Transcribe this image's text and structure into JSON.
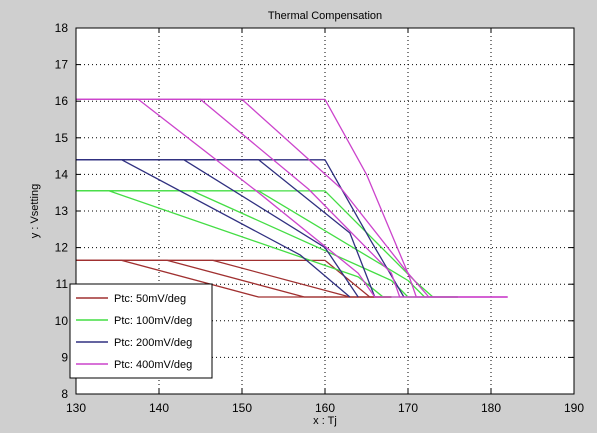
{
  "chart_data": {
    "type": "line",
    "title": "Thermal Compensation",
    "xlabel": "x : Tj",
    "ylabel": "y : Vsetting",
    "xlim": [
      130,
      190
    ],
    "ylim": [
      8,
      18
    ],
    "xticks": [
      "130",
      "140",
      "150",
      "160",
      "170",
      "180",
      "190"
    ],
    "yticks": [
      "8",
      "9",
      "10",
      "11",
      "12",
      "13",
      "14",
      "15",
      "16",
      "17",
      "18"
    ],
    "grid": true,
    "legend_position": "bottom-left",
    "series": [
      {
        "name": "Ptc: 50mV/deg",
        "color": "#a03030",
        "lines": [
          [
            [
              130,
              11.65
            ],
            [
              160,
              11.65
            ],
            [
              165.4,
              10.65
            ],
            [
              168,
              10.65
            ]
          ],
          [
            [
              130,
              11.65
            ],
            [
              135.5,
              11.65
            ],
            [
              152,
              10.65
            ],
            [
              168,
              10.65
            ]
          ],
          [
            [
              130,
              11.65
            ],
            [
              141,
              11.65
            ],
            [
              157.5,
              10.65
            ],
            [
              168,
              10.65
            ]
          ],
          [
            [
              130,
              11.65
            ],
            [
              146.5,
              11.65
            ],
            [
              163,
              10.65
            ],
            [
              168,
              10.65
            ]
          ]
        ]
      },
      {
        "name": "Ptc: 100mV/deg",
        "color": "#44dd44",
        "lines": [
          [
            [
              130,
              13.55
            ],
            [
              160,
              13.55
            ],
            [
              171,
              11.05
            ],
            [
              173,
              10.65
            ],
            [
              176,
              10.65
            ]
          ],
          [
            [
              130,
              13.55
            ],
            [
              134,
              13.55
            ],
            [
              164,
              11.2
            ],
            [
              167,
              10.65
            ],
            [
              176,
              10.65
            ]
          ],
          [
            [
              130,
              13.55
            ],
            [
              144,
              13.55
            ],
            [
              168,
              11.1
            ],
            [
              170,
              10.65
            ],
            [
              176,
              10.65
            ]
          ],
          [
            [
              130,
              13.55
            ],
            [
              152,
              13.55
            ],
            [
              170,
              11.1
            ],
            [
              172,
              10.65
            ],
            [
              176,
              10.65
            ]
          ]
        ]
      },
      {
        "name": "Ptc: 200mV/deg",
        "color": "#303080",
        "lines": [
          [
            [
              130,
              14.4
            ],
            [
              160,
              14.4
            ],
            [
              165.5,
              12.2
            ],
            [
              169.5,
              10.65
            ]
          ],
          [
            [
              130,
              14.4
            ],
            [
              135.5,
              14.4
            ],
            [
              157,
              11.8
            ],
            [
              163,
              10.65
            ]
          ],
          [
            [
              130,
              14.4
            ],
            [
              143,
              14.4
            ],
            [
              160,
              12.0
            ],
            [
              164,
              10.65
            ]
          ],
          [
            [
              130,
              14.4
            ],
            [
              152,
              14.4
            ],
            [
              163,
              12.4
            ],
            [
              166,
              10.65
            ]
          ]
        ]
      },
      {
        "name": "Ptc: 400mV/deg",
        "color": "#cc44cc",
        "lines": [
          [
            [
              130,
              16.05
            ],
            [
              160,
              16.05
            ],
            [
              165,
              14.0
            ],
            [
              170,
              11.3
            ],
            [
              172.5,
              10.65
            ],
            [
              182,
              10.65
            ]
          ],
          [
            [
              130,
              16.05
            ],
            [
              137.5,
              16.05
            ],
            [
              152,
              13.5
            ],
            [
              164,
              11.3
            ],
            [
              166,
              10.65
            ],
            [
              182,
              10.65
            ]
          ],
          [
            [
              130,
              16.05
            ],
            [
              145,
              16.05
            ],
            [
              158,
              13.6
            ],
            [
              168,
              11.3
            ],
            [
              169,
              10.65
            ],
            [
              182,
              10.65
            ]
          ],
          [
            [
              130,
              16.05
            ],
            [
              150,
              16.05
            ],
            [
              162,
              13.6
            ],
            [
              170,
              11.3
            ],
            [
              171,
              10.65
            ],
            [
              182,
              10.65
            ]
          ]
        ]
      }
    ]
  }
}
